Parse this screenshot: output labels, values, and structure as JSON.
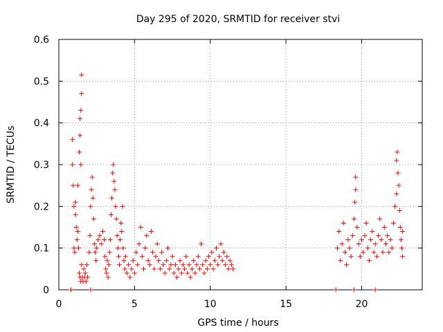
{
  "chart_data": {
    "type": "scatter",
    "title": "Day 295 of 2020, SRMTID for receiver stvi",
    "xlabel": "GPS time / hours",
    "ylabel": "SRMTID / TECUs",
    "xlim": [
      0,
      24
    ],
    "ylim": [
      0,
      0.6
    ],
    "xticks": [
      0,
      5,
      10,
      15,
      20
    ],
    "xtick_labels": [
      "0",
      "5",
      "10",
      "15",
      "20"
    ],
    "yticks": [
      0,
      0.1,
      0.2,
      0.3,
      0.4,
      0.5,
      0.6
    ],
    "ytick_labels": [
      "0",
      "0.1",
      "0.2",
      "0.3",
      "0.4",
      "0.5",
      "0.6"
    ],
    "grid": true,
    "marker": "+",
    "color": "#ff0000",
    "series": [
      {
        "name": "SRMTID",
        "points": [
          [
            0.8,
            0.0
          ],
          [
            0.9,
            0.36
          ],
          [
            0.9,
            0.3
          ],
          [
            0.95,
            0.25
          ],
          [
            1.0,
            0.2
          ],
          [
            1.0,
            0.1
          ],
          [
            1.05,
            0.09
          ],
          [
            1.1,
            0.21
          ],
          [
            1.1,
            0.18
          ],
          [
            1.15,
            0.15
          ],
          [
            1.2,
            0.12
          ],
          [
            1.25,
            0.14
          ],
          [
            1.25,
            0.25
          ],
          [
            1.3,
            0.1
          ],
          [
            1.35,
            0.33
          ],
          [
            1.4,
            0.37
          ],
          [
            1.4,
            0.41
          ],
          [
            1.45,
            0.43
          ],
          [
            1.5,
            0.47
          ],
          [
            1.5,
            0.515
          ],
          [
            1.45,
            0.3
          ],
          [
            1.35,
            0.04
          ],
          [
            1.4,
            0.03
          ],
          [
            1.45,
            0.02
          ],
          [
            1.5,
            0.06
          ],
          [
            1.55,
            0.03
          ],
          [
            1.6,
            0.02
          ],
          [
            1.65,
            0.05
          ],
          [
            1.7,
            0.03
          ],
          [
            1.75,
            0.04
          ],
          [
            1.8,
            0.02
          ],
          [
            1.85,
            0.06
          ],
          [
            1.9,
            0.03
          ],
          [
            2.0,
            0.09
          ],
          [
            2.05,
            0.13
          ],
          [
            2.1,
            0.2
          ],
          [
            2.15,
            0.24
          ],
          [
            2.2,
            0.27
          ],
          [
            2.25,
            0.22
          ],
          [
            2.3,
            0.17
          ],
          [
            2.35,
            0.11
          ],
          [
            2.4,
            0.09
          ],
          [
            2.45,
            0.07
          ],
          [
            2.5,
            0.1
          ],
          [
            2.6,
            0.12
          ],
          [
            2.7,
            0.13
          ],
          [
            2.8,
            0.11
          ],
          [
            2.9,
            0.14
          ],
          [
            3.0,
            0.12
          ],
          [
            3.05,
            0.08
          ],
          [
            3.1,
            0.05
          ],
          [
            3.15,
            0.04
          ],
          [
            3.2,
            0.07
          ],
          [
            3.25,
            0.03
          ],
          [
            3.3,
            0.06
          ],
          [
            3.35,
            0.09
          ],
          [
            3.4,
            0.12
          ],
          [
            3.45,
            0.18
          ],
          [
            3.5,
            0.22
          ],
          [
            3.55,
            0.28
          ],
          [
            3.6,
            0.3
          ],
          [
            3.65,
            0.26
          ],
          [
            3.7,
            0.24
          ],
          [
            3.75,
            0.2
          ],
          [
            3.8,
            0.17
          ],
          [
            3.85,
            0.13
          ],
          [
            3.9,
            0.1
          ],
          [
            3.95,
            0.08
          ],
          [
            4.0,
            0.06
          ],
          [
            4.05,
            0.12
          ],
          [
            4.1,
            0.16
          ],
          [
            4.15,
            0.14
          ],
          [
            4.2,
            0.2
          ],
          [
            4.25,
            0.1
          ],
          [
            4.3,
            0.07
          ],
          [
            4.35,
            0.05
          ],
          [
            4.4,
            0.08
          ],
          [
            4.5,
            0.04
          ],
          [
            4.6,
            0.06
          ],
          [
            4.7,
            0.03
          ],
          [
            4.8,
            0.05
          ],
          [
            4.9,
            0.07
          ],
          [
            5.0,
            0.04
          ],
          [
            5.1,
            0.09
          ],
          [
            5.2,
            0.06
          ],
          [
            5.3,
            0.11
          ],
          [
            5.4,
            0.15
          ],
          [
            5.5,
            0.08
          ],
          [
            5.6,
            0.05
          ],
          [
            5.7,
            0.1
          ],
          [
            5.8,
            0.13
          ],
          [
            5.9,
            0.07
          ],
          [
            6.0,
            0.06
          ],
          [
            6.1,
            0.14
          ],
          [
            6.2,
            0.09
          ],
          [
            6.3,
            0.05
          ],
          [
            6.4,
            0.08
          ],
          [
            6.5,
            0.11
          ],
          [
            6.6,
            0.07
          ],
          [
            6.7,
            0.05
          ],
          [
            6.8,
            0.09
          ],
          [
            6.9,
            0.06
          ],
          [
            7.0,
            0.04
          ],
          [
            7.1,
            0.07
          ],
          [
            7.2,
            0.1
          ],
          [
            7.3,
            0.05
          ],
          [
            7.4,
            0.06
          ],
          [
            7.5,
            0.08
          ],
          [
            7.6,
            0.04
          ],
          [
            7.7,
            0.06
          ],
          [
            7.8,
            0.03
          ],
          [
            7.9,
            0.05
          ],
          [
            8.0,
            0.07
          ],
          [
            8.1,
            0.04
          ],
          [
            8.2,
            0.06
          ],
          [
            8.3,
            0.05
          ],
          [
            8.4,
            0.08
          ],
          [
            8.5,
            0.04
          ],
          [
            8.6,
            0.06
          ],
          [
            8.7,
            0.03
          ],
          [
            8.8,
            0.05
          ],
          [
            8.9,
            0.07
          ],
          [
            9.0,
            0.04
          ],
          [
            9.1,
            0.06
          ],
          [
            9.2,
            0.08
          ],
          [
            9.3,
            0.05
          ],
          [
            9.4,
            0.11
          ],
          [
            9.5,
            0.06
          ],
          [
            9.6,
            0.04
          ],
          [
            9.7,
            0.07
          ],
          [
            9.8,
            0.05
          ],
          [
            9.9,
            0.08
          ],
          [
            10.0,
            0.06
          ],
          [
            10.1,
            0.09
          ],
          [
            10.2,
            0.05
          ],
          [
            10.3,
            0.07
          ],
          [
            10.4,
            0.1
          ],
          [
            10.5,
            0.06
          ],
          [
            10.6,
            0.08
          ],
          [
            10.7,
            0.11
          ],
          [
            10.8,
            0.07
          ],
          [
            10.9,
            0.09
          ],
          [
            11.0,
            0.06
          ],
          [
            11.1,
            0.08
          ],
          [
            11.2,
            0.05
          ],
          [
            11.3,
            0.07
          ],
          [
            11.4,
            0.06
          ],
          [
            11.5,
            0.05
          ],
          [
            2.1,
            0.0
          ],
          [
            18.3,
            0.0
          ],
          [
            19.5,
            0.0
          ],
          [
            20.9,
            0.0
          ],
          [
            18.4,
            0.1
          ],
          [
            18.5,
            0.14
          ],
          [
            18.6,
            0.07
          ],
          [
            18.7,
            0.11
          ],
          [
            18.8,
            0.16
          ],
          [
            18.9,
            0.09
          ],
          [
            19.0,
            0.06
          ],
          [
            19.1,
            0.12
          ],
          [
            19.2,
            0.1
          ],
          [
            19.3,
            0.08
          ],
          [
            19.4,
            0.13
          ],
          [
            19.5,
            0.17
          ],
          [
            19.55,
            0.21
          ],
          [
            19.6,
            0.24
          ],
          [
            19.6,
            0.27
          ],
          [
            19.7,
            0.15
          ],
          [
            19.8,
            0.11
          ],
          [
            19.9,
            0.08
          ],
          [
            20.0,
            0.12
          ],
          [
            20.1,
            0.09
          ],
          [
            20.2,
            0.13
          ],
          [
            20.3,
            0.16
          ],
          [
            20.4,
            0.1
          ],
          [
            20.5,
            0.07
          ],
          [
            20.6,
            0.12
          ],
          [
            20.7,
            0.14
          ],
          [
            20.8,
            0.09
          ],
          [
            20.9,
            0.11
          ],
          [
            21.0,
            0.08
          ],
          [
            21.1,
            0.13
          ],
          [
            21.2,
            0.17
          ],
          [
            21.3,
            0.12
          ],
          [
            21.4,
            0.09
          ],
          [
            21.5,
            0.15
          ],
          [
            21.6,
            0.11
          ],
          [
            21.7,
            0.13
          ],
          [
            21.8,
            0.09
          ],
          [
            21.9,
            0.12
          ],
          [
            22.0,
            0.1
          ],
          [
            22.1,
            0.16
          ],
          [
            22.2,
            0.2
          ],
          [
            22.3,
            0.23
          ],
          [
            22.3,
            0.31
          ],
          [
            22.35,
            0.33
          ],
          [
            22.4,
            0.28
          ],
          [
            22.45,
            0.25
          ],
          [
            22.5,
            0.19
          ],
          [
            22.55,
            0.15
          ],
          [
            22.6,
            0.12
          ],
          [
            22.65,
            0.1
          ],
          [
            22.7,
            0.08
          ],
          [
            22.7,
            0.14
          ]
        ]
      }
    ]
  }
}
